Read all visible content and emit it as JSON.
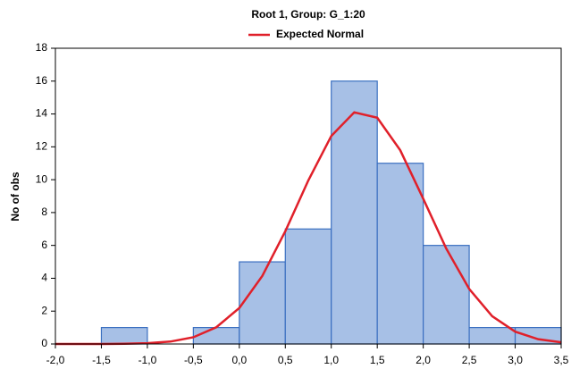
{
  "chart_data": {
    "type": "histogram",
    "title": "Root  1, Group: G_1:20",
    "ylabel": "No of obs",
    "bins": [
      -2.0,
      -1.5,
      -1.0,
      -0.5,
      0.0,
      0.5,
      1.0,
      1.5,
      2.0,
      2.5,
      3.0,
      3.5
    ],
    "values": [
      0,
      1,
      0,
      1,
      5,
      7,
      16,
      11,
      6,
      1,
      1
    ],
    "color": "#a7c0e6",
    "edge_color": "#3a6fc0",
    "curve": {
      "name": "Expected Normal",
      "color": "#e0202a",
      "x": [
        -2.0,
        -1.75,
        -1.5,
        -1.25,
        -1.0,
        -0.75,
        -0.5,
        -0.25,
        0.0,
        0.25,
        0.5,
        0.75,
        1.0,
        1.25,
        1.5,
        1.75,
        2.0,
        2.25,
        2.5,
        2.75,
        3.0,
        3.25,
        3.5
      ],
      "values": [
        0.0,
        0.0,
        0.003,
        0.013,
        0.046,
        0.147,
        0.41,
        1.02,
        2.19,
        4.14,
        6.86,
        9.95,
        12.66,
        14.1,
        13.77,
        11.79,
        8.84,
        5.81,
        3.35,
        1.69,
        0.75,
        0.29,
        0.1
      ]
    },
    "xlim": [
      -2.0,
      3.5
    ],
    "xticks": [
      {
        "value": -2.0,
        "label": "-2,0"
      },
      {
        "value": -1.5,
        "label": "-1,5"
      },
      {
        "value": -1.0,
        "label": "-1,0"
      },
      {
        "value": -0.5,
        "label": "-0,5"
      },
      {
        "value": 0.0,
        "label": "0,0"
      },
      {
        "value": 0.5,
        "label": "0,5"
      },
      {
        "value": 1.0,
        "label": "1,0"
      },
      {
        "value": 1.5,
        "label": "1,5"
      },
      {
        "value": 2.0,
        "label": "2,0"
      },
      {
        "value": 2.5,
        "label": "2,5"
      },
      {
        "value": 3.0,
        "label": "3,0"
      },
      {
        "value": 3.5,
        "label": "3,5"
      }
    ],
    "ylim": [
      0,
      18
    ],
    "yticks": [
      0,
      2,
      4,
      6,
      8,
      10,
      12,
      14,
      16,
      18
    ],
    "grid": false
  }
}
